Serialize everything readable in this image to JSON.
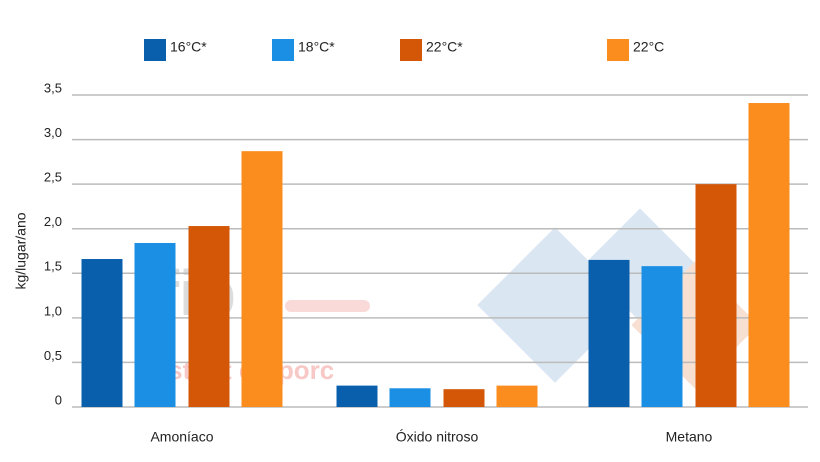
{
  "chart_data": {
    "type": "bar",
    "y_label": "kg/lugar/ano",
    "categories": [
      "Amoníaco",
      "Óxido nitroso",
      "Metano"
    ],
    "series": [
      {
        "name": "16°C*",
        "color": "#0a5fad",
        "values": [
          1.66,
          0.24,
          1.65
        ]
      },
      {
        "name": "18°C*",
        "color": "#1a8fe3",
        "values": [
          1.84,
          0.21,
          1.58
        ]
      },
      {
        "name": "22°C*",
        "color": "#d45708",
        "values": [
          2.03,
          0.2,
          2.5
        ]
      },
      {
        "name": "22°C",
        "color": "#fb8c1e",
        "values": [
          2.87,
          0.24,
          3.41
        ]
      }
    ],
    "ylim": [
      0,
      3.5
    ],
    "yticks": [
      0,
      {
        "value": 0.5,
        "label": "0,5"
      },
      {
        "value": 1,
        "label": "1,0"
      },
      {
        "value": 1.5,
        "label": "1,5"
      },
      {
        "value": 2,
        "label": "2,0"
      },
      {
        "value": 2.5,
        "label": "2,5"
      },
      {
        "value": 3,
        "label": "3,0"
      },
      {
        "value": 3.5,
        "label": "3,5"
      }
    ],
    "grid": true,
    "watermark": [
      "ifip",
      "Institut du porc"
    ]
  }
}
